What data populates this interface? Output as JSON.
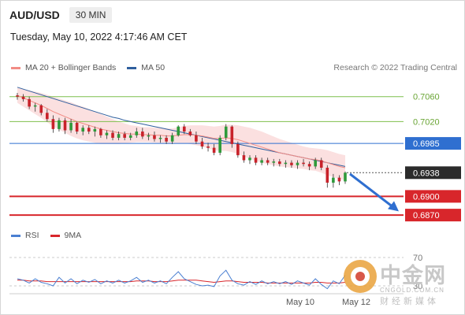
{
  "header": {
    "symbol": "AUD/USD",
    "timeframe": "30 MIN"
  },
  "timestamp": "Tuesday, May 10, 2022 4:17:46 AM CET",
  "legend": {
    "ma20": {
      "label": "MA 20 + Bollinger Bands",
      "color": "#f28c85"
    },
    "ma50": {
      "label": "MA 50",
      "color": "#2f5f9e"
    }
  },
  "credit": "Research © 2022 Trading Central",
  "rsi_legend": {
    "rsi": {
      "label": "RSI",
      "color": "#4a7fd1"
    },
    "ma9": {
      "label": "9MA",
      "color": "#d8262b"
    }
  },
  "watermark": {
    "title": "中金网",
    "url": "CNGOLD.COM.CN",
    "subtitle": "财经新媒体"
  },
  "chart_data": {
    "type": "candlestick",
    "price_range": [
      0.6855,
      0.7095
    ],
    "levels": [
      {
        "value": 0.706,
        "label": "0.7060",
        "kind": "resistance",
        "color": "#7fbf4d"
      },
      {
        "value": 0.702,
        "label": "0.7020",
        "kind": "resistance",
        "color": "#7fbf4d"
      },
      {
        "value": 0.6985,
        "label": "0.6985",
        "kind": "pivot",
        "color": "#2f6fd0"
      },
      {
        "value": 0.6938,
        "label": "0.6938",
        "kind": "last",
        "color": "#2b2b2b"
      },
      {
        "value": 0.69,
        "label": "0.6900",
        "kind": "support",
        "color": "#d8262b"
      },
      {
        "value": 0.687,
        "label": "0.6870",
        "kind": "support",
        "color": "#d8262b"
      }
    ],
    "candles": [
      [
        0.7062,
        0.7066,
        0.7055,
        0.706
      ],
      [
        0.706,
        0.7064,
        0.7052,
        0.7056
      ],
      [
        0.7056,
        0.706,
        0.704,
        0.7044
      ],
      [
        0.7044,
        0.705,
        0.7036,
        0.7046
      ],
      [
        0.7046,
        0.7048,
        0.703,
        0.7034
      ],
      [
        0.7034,
        0.704,
        0.702,
        0.7024
      ],
      [
        0.7024,
        0.703,
        0.7002,
        0.7008
      ],
      [
        0.7008,
        0.7026,
        0.7004,
        0.7022
      ],
      [
        0.7022,
        0.7026,
        0.7,
        0.7006
      ],
      [
        0.7006,
        0.7024,
        0.7002,
        0.7018
      ],
      [
        0.7018,
        0.702,
        0.7,
        0.7004
      ],
      [
        0.7004,
        0.7014,
        0.6998,
        0.701
      ],
      [
        0.701,
        0.7014,
        0.7,
        0.7004
      ],
      [
        0.7004,
        0.7012,
        0.6996,
        0.7008
      ],
      [
        0.7008,
        0.701,
        0.6994,
        0.6998
      ],
      [
        0.6998,
        0.7006,
        0.6992,
        0.7002
      ],
      [
        0.7002,
        0.7006,
        0.699,
        0.6994
      ],
      [
        0.6994,
        0.7004,
        0.699,
        0.7
      ],
      [
        0.7,
        0.7004,
        0.699,
        0.6994
      ],
      [
        0.6994,
        0.7002,
        0.699,
        0.6998
      ],
      [
        0.6998,
        0.701,
        0.6994,
        0.7004
      ],
      [
        0.7004,
        0.701,
        0.6992,
        0.6996
      ],
      [
        0.6996,
        0.7002,
        0.699,
        0.6998
      ],
      [
        0.6998,
        0.7004,
        0.6988,
        0.6992
      ],
      [
        0.6992,
        0.6998,
        0.6986,
        0.6994
      ],
      [
        0.6994,
        0.6998,
        0.6984,
        0.6988
      ],
      [
        0.6988,
        0.7002,
        0.6984,
        0.6998
      ],
      [
        0.6998,
        0.7014,
        0.6996,
        0.7012
      ],
      [
        0.7012,
        0.7016,
        0.7,
        0.7004
      ],
      [
        0.7004,
        0.7008,
        0.6996,
        0.6998
      ],
      [
        0.6998,
        0.7004,
        0.6984,
        0.6988
      ],
      [
        0.6988,
        0.6994,
        0.6976,
        0.698
      ],
      [
        0.698,
        0.6986,
        0.6972,
        0.6978
      ],
      [
        0.6978,
        0.6984,
        0.6966,
        0.697
      ],
      [
        0.697,
        0.6998,
        0.6966,
        0.6994
      ],
      [
        0.6994,
        0.7016,
        0.699,
        0.7012
      ],
      [
        0.7012,
        0.7014,
        0.6978,
        0.6984
      ],
      [
        0.6984,
        0.6988,
        0.6962,
        0.6966
      ],
      [
        0.6966,
        0.6972,
        0.6954,
        0.6958
      ],
      [
        0.6958,
        0.6966,
        0.6952,
        0.6962
      ],
      [
        0.6962,
        0.6966,
        0.695,
        0.6954
      ],
      [
        0.6954,
        0.6962,
        0.695,
        0.6958
      ],
      [
        0.6958,
        0.6962,
        0.695,
        0.6954
      ],
      [
        0.6954,
        0.696,
        0.6948,
        0.6956
      ],
      [
        0.6956,
        0.696,
        0.6948,
        0.6952
      ],
      [
        0.6952,
        0.6958,
        0.6946,
        0.6954
      ],
      [
        0.6954,
        0.6958,
        0.6946,
        0.695
      ],
      [
        0.695,
        0.6958,
        0.6944,
        0.6954
      ],
      [
        0.6954,
        0.696,
        0.6948,
        0.6952
      ],
      [
        0.6952,
        0.6956,
        0.6942,
        0.6948
      ],
      [
        0.6948,
        0.6962,
        0.6944,
        0.6958
      ],
      [
        0.6958,
        0.6962,
        0.6942,
        0.6946
      ],
      [
        0.6946,
        0.695,
        0.6914,
        0.6922
      ],
      [
        0.6922,
        0.6936,
        0.6914,
        0.693
      ],
      [
        0.693,
        0.6934,
        0.6918,
        0.6924
      ],
      [
        0.6924,
        0.694,
        0.692,
        0.6938
      ]
    ],
    "ma20": [
      0.7062,
      0.7058,
      0.7054,
      0.705,
      0.7046,
      0.7041,
      0.7036,
      0.7032,
      0.7028,
      0.7024,
      0.702,
      0.7017,
      0.7014,
      0.7011,
      0.7008,
      0.7006,
      0.7004,
      0.7002,
      0.7001,
      0.7,
      0.7,
      0.6999,
      0.6999,
      0.6998,
      0.6998,
      0.6997,
      0.6997,
      0.6998,
      0.6999,
      0.6999,
      0.6998,
      0.6997,
      0.6995,
      0.6993,
      0.6993,
      0.6994,
      0.6993,
      0.6991,
      0.6988,
      0.6985,
      0.6982,
      0.6979,
      0.6976,
      0.6973,
      0.697,
      0.6968,
      0.6966,
      0.6964,
      0.6962,
      0.696,
      0.6959,
      0.6957,
      0.6954,
      0.6951,
      0.6948,
      0.6946
    ],
    "ma20_band": [
      0.0012,
      0.0014,
      0.0016,
      0.0018,
      0.002,
      0.0022,
      0.0024,
      0.0025,
      0.0026,
      0.0027,
      0.0027,
      0.0027,
      0.0026,
      0.0025,
      0.0024,
      0.0022,
      0.002,
      0.0018,
      0.0016,
      0.0014,
      0.0013,
      0.0012,
      0.0012,
      0.0012,
      0.0012,
      0.0012,
      0.0012,
      0.0013,
      0.0014,
      0.0015,
      0.0016,
      0.0017,
      0.0018,
      0.0019,
      0.002,
      0.0021,
      0.0022,
      0.0023,
      0.0024,
      0.0025,
      0.0025,
      0.0025,
      0.0024,
      0.0023,
      0.0022,
      0.0021,
      0.002,
      0.0019,
      0.0018,
      0.0018,
      0.0018,
      0.0019,
      0.002,
      0.002,
      0.002,
      0.002
    ],
    "ma50": [
      0.7075,
      0.7072,
      0.7069,
      0.7066,
      0.7063,
      0.706,
      0.7057,
      0.7054,
      0.7051,
      0.7048,
      0.7045,
      0.7042,
      0.7039,
      0.7036,
      0.7033,
      0.703,
      0.7027,
      0.7025,
      0.7022,
      0.702,
      0.7018,
      0.7016,
      0.7014,
      0.7012,
      0.701,
      0.7008,
      0.7006,
      0.7004,
      0.7002,
      0.7,
      0.6998,
      0.6996,
      0.6994,
      0.6992,
      0.699,
      0.6988,
      0.6986,
      0.6984,
      0.6982,
      0.698,
      0.6978,
      0.6976,
      0.6974,
      0.6972,
      0.697,
      0.6968,
      0.6966,
      0.6964,
      0.6962,
      0.696,
      0.6958,
      0.6956,
      0.6954,
      0.6952,
      0.695,
      0.6948
    ],
    "forecast": {
      "from": 0.6936,
      "to": 0.6876
    },
    "rsi": {
      "levels": [
        {
          "value": 70,
          "label": "70"
        },
        {
          "value": 30,
          "label": "30"
        }
      ],
      "range": [
        20,
        80
      ],
      "rsi": [
        40,
        38,
        34,
        40,
        35,
        33,
        30,
        42,
        34,
        40,
        33,
        38,
        35,
        39,
        33,
        37,
        34,
        38,
        34,
        37,
        42,
        35,
        38,
        34,
        37,
        33,
        42,
        50,
        40,
        36,
        32,
        30,
        31,
        29,
        44,
        52,
        38,
        33,
        31,
        36,
        32,
        37,
        33,
        36,
        33,
        36,
        32,
        37,
        34,
        31,
        40,
        32,
        26,
        37,
        33,
        45
      ],
      "ma9": [
        38,
        38,
        37,
        37,
        37,
        36,
        36,
        36,
        36,
        36,
        36,
        36,
        36,
        36,
        36,
        36,
        36,
        36,
        36,
        36,
        37,
        37,
        37,
        36,
        36,
        36,
        37,
        38,
        38,
        38,
        38,
        37,
        36,
        35,
        36,
        37,
        37,
        36,
        35,
        35,
        35,
        35,
        34,
        34,
        34,
        34,
        34,
        34,
        34,
        34,
        35,
        35,
        34,
        34,
        34,
        35
      ]
    },
    "x_tick_labels": [
      "May 10",
      "May 12"
    ]
  }
}
